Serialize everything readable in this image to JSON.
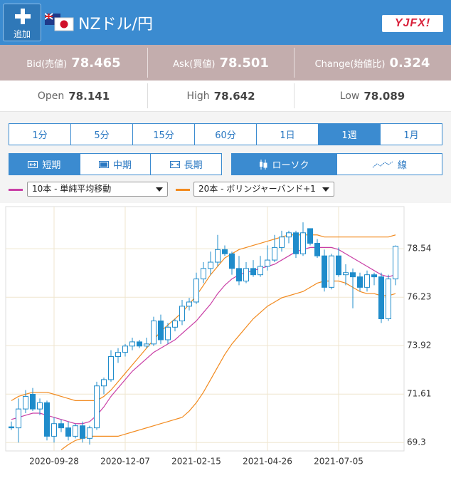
{
  "header": {
    "add_button": "追加",
    "pair": "NZドル/円",
    "logo": "YJFX!"
  },
  "quotes": {
    "bid": {
      "label": "Bid(売値)",
      "value": "78.465"
    },
    "ask": {
      "label": "Ask(買値)",
      "value": "78.501"
    },
    "change": {
      "label": "Change(始値比)",
      "value": "0.324"
    }
  },
  "ohlc": {
    "open": {
      "label": "Open",
      "value": "78.141"
    },
    "high": {
      "label": "High",
      "value": "78.642"
    },
    "low": {
      "label": "Low",
      "value": "78.089"
    }
  },
  "periods": {
    "items": [
      "1分",
      "5分",
      "15分",
      "60分",
      "1日",
      "1週",
      "1月"
    ],
    "selected": 5
  },
  "terms": {
    "items": [
      "短期",
      "中期",
      "長期"
    ],
    "selected": 0
  },
  "chart_types": {
    "items": [
      "ローソク",
      "線"
    ],
    "selected": 0
  },
  "chart_data": {
    "type": "candlestick",
    "categories": [
      null,
      null,
      null,
      null,
      null,
      null,
      "2020-09-28",
      null,
      null,
      null,
      null,
      null,
      null,
      null,
      null,
      null,
      "2020-12-07",
      null,
      null,
      null,
      null,
      null,
      null,
      null,
      null,
      null,
      "2021-02-15",
      null,
      null,
      null,
      null,
      null,
      null,
      null,
      null,
      null,
      "2021-04-26",
      null,
      null,
      null,
      null,
      null,
      null,
      null,
      null,
      null,
      "2021-07-05",
      null,
      null,
      null,
      null,
      null,
      null,
      null,
      null
    ],
    "open": [
      70.05,
      70.0,
      70.9,
      71.6,
      70.9,
      71.2,
      69.6,
      70.2,
      70.0,
      69.6,
      70.1,
      69.5,
      70.0,
      72.0,
      72.3,
      73.4,
      73.6,
      73.9,
      74.1,
      73.9,
      74.0,
      75.1,
      74.2,
      74.8,
      75.1,
      75.8,
      76.0,
      77.1,
      77.6,
      77.9,
      78.5,
      78.3,
      77.6,
      77.0,
      77.6,
      77.3,
      77.7,
      78.0,
      78.6,
      79.1,
      79.3,
      78.3,
      79.5,
      78.8,
      78.2,
      76.7,
      78.2,
      77.3,
      77.4,
      77.2,
      76.7,
      77.3,
      77.2,
      75.2,
      77.1
    ],
    "high": [
      70.3,
      71.4,
      71.8,
      71.9,
      71.4,
      71.3,
      70.5,
      70.4,
      70.3,
      70.2,
      70.3,
      70.1,
      72.2,
      72.4,
      73.7,
      73.8,
      74.0,
      74.3,
      74.2,
      74.3,
      75.3,
      75.4,
      75.0,
      75.2,
      76.1,
      76.2,
      77.4,
      77.9,
      78.4,
      79.2,
      78.7,
      78.4,
      78.2,
      77.9,
      78.0,
      78.2,
      78.7,
      79.2,
      79.4,
      79.4,
      79.4,
      79.8,
      79.5,
      79.0,
      78.5,
      78.3,
      78.6,
      77.8,
      77.6,
      77.4,
      77.5,
      77.4,
      77.4,
      77.3,
      78.7
    ],
    "low": [
      69.9,
      69.3,
      70.7,
      70.8,
      70.6,
      69.4,
      69.3,
      69.8,
      69.4,
      69.5,
      69.3,
      69.2,
      69.9,
      71.6,
      72.2,
      73.1,
      73.4,
      73.7,
      73.8,
      73.8,
      73.9,
      74.0,
      74.0,
      74.6,
      74.9,
      75.6,
      75.9,
      76.9,
      77.3,
      77.7,
      78.2,
      77.3,
      76.8,
      76.9,
      77.2,
      77.2,
      77.5,
      77.9,
      78.4,
      78.8,
      78.1,
      78.2,
      78.7,
      78.1,
      76.5,
      76.6,
      77.2,
      76.8,
      75.7,
      76.5,
      76.5,
      76.8,
      75.0,
      75.1,
      76.8
    ],
    "close": [
      70.0,
      70.9,
      71.5,
      70.9,
      71.2,
      69.6,
      70.2,
      70.0,
      69.6,
      70.1,
      69.5,
      70.0,
      72.0,
      72.3,
      73.4,
      73.6,
      73.9,
      74.1,
      73.9,
      74.0,
      75.1,
      74.2,
      74.8,
      75.1,
      75.8,
      76.0,
      77.1,
      77.6,
      77.9,
      78.5,
      78.3,
      77.6,
      77.0,
      77.6,
      77.3,
      77.7,
      78.0,
      78.6,
      79.1,
      79.3,
      78.3,
      79.3,
      78.8,
      78.2,
      76.7,
      78.2,
      77.3,
      77.4,
      77.2,
      76.7,
      77.3,
      77.2,
      75.2,
      77.1,
      78.66
    ],
    "series": [
      {
        "name": "10本 - 単純平均移動",
        "color": "#c93fa6",
        "values": [
          70.4,
          70.5,
          70.6,
          70.7,
          70.7,
          70.6,
          70.5,
          70.4,
          70.3,
          70.2,
          70.2,
          70.3,
          70.6,
          71.0,
          71.5,
          71.9,
          72.3,
          72.7,
          73.0,
          73.3,
          73.6,
          73.8,
          74.0,
          74.2,
          74.5,
          74.8,
          75.1,
          75.5,
          75.9,
          76.4,
          76.8,
          77.1,
          77.3,
          77.4,
          77.5,
          77.6,
          77.7,
          77.8,
          78.0,
          78.2,
          78.4,
          78.5,
          78.6,
          78.6,
          78.6,
          78.6,
          78.5,
          78.3,
          78.1,
          77.9,
          77.7,
          77.5,
          77.3,
          77.2,
          77.3
        ]
      },
      {
        "name": "20本 - ボリンジャーバンド+1",
        "color": "#f28a1e",
        "upper": [
          71.3,
          71.5,
          71.6,
          71.7,
          71.7,
          71.7,
          71.6,
          71.5,
          71.4,
          71.3,
          71.3,
          71.3,
          71.3,
          71.5,
          71.8,
          72.2,
          72.6,
          73.0,
          73.4,
          73.8,
          74.2,
          74.6,
          74.9,
          75.2,
          75.5,
          75.9,
          76.3,
          76.8,
          77.3,
          77.7,
          78.1,
          78.3,
          78.5,
          78.6,
          78.7,
          78.8,
          78.9,
          79.0,
          79.1,
          79.2,
          79.2,
          79.2,
          79.2,
          79.2,
          79.1,
          79.1,
          79.1,
          79.1,
          79.1,
          79.1,
          79.1,
          79.1,
          79.1,
          79.1,
          79.2
        ],
        "lower": [
          null,
          null,
          null,
          null,
          null,
          null,
          null,
          68.95,
          69.2,
          69.4,
          69.5,
          69.6,
          69.6,
          69.6,
          69.6,
          69.6,
          69.7,
          69.8,
          69.9,
          70.0,
          70.1,
          70.2,
          70.3,
          70.4,
          70.5,
          70.8,
          71.2,
          71.7,
          72.3,
          72.9,
          73.5,
          74.0,
          74.4,
          74.8,
          75.2,
          75.5,
          75.8,
          76.0,
          76.2,
          76.3,
          76.4,
          76.5,
          76.7,
          76.9,
          77.0,
          77.0,
          77.0,
          76.9,
          76.7,
          76.5,
          76.4,
          76.4,
          76.3,
          76.3,
          76.4
        ]
      }
    ],
    "up_color": "#ffffff",
    "candle_color": "#1f8ccb",
    "ylim": [
      68.9,
      80.55
    ],
    "yticks": [
      69.3,
      71.61,
      73.92,
      76.23,
      78.54
    ],
    "grid": true
  }
}
